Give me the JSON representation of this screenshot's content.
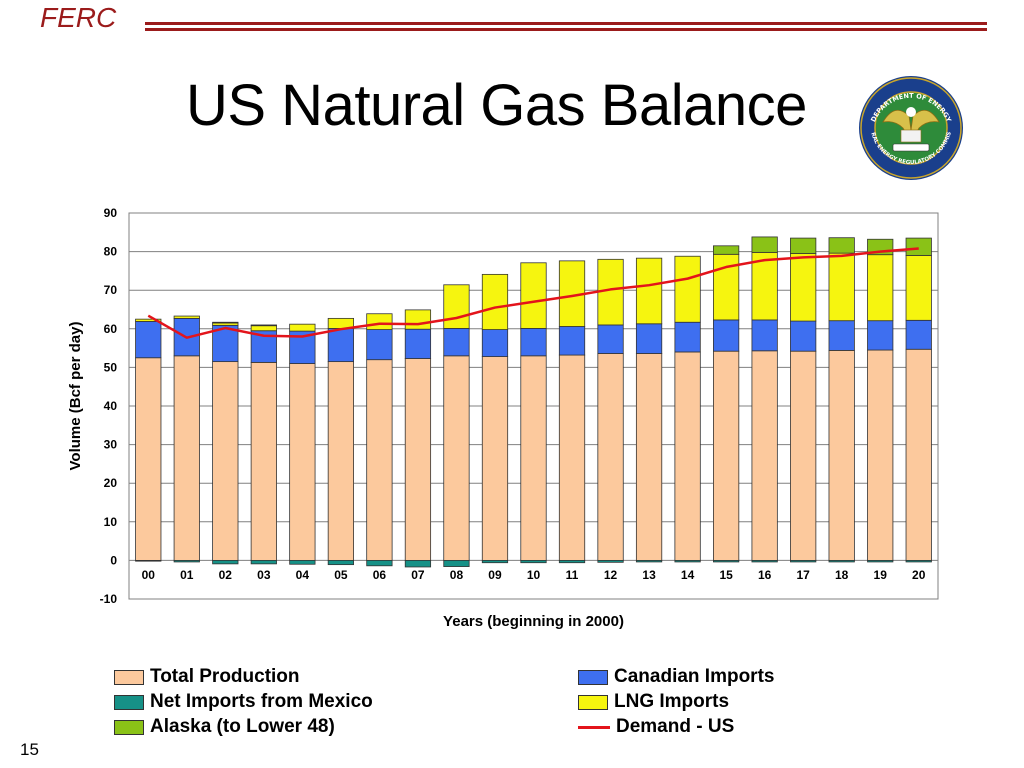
{
  "header": {
    "brand": "FERC",
    "title": "US Natural Gas Balance"
  },
  "seal": {
    "name": "seal-logo",
    "ring_text_top": "DEPARTMENT OF ENERGY",
    "ring_text_bottom": "FEDERAL ENERGY REGULATORY COMMISSION"
  },
  "colors": {
    "brand": "#9b1b1b",
    "production": "#fcc99d",
    "canada": "#3e6ff0",
    "mexico": "#169187",
    "lng": "#f6f50f",
    "alaska": "#8ac217",
    "demand": "#e3141b"
  },
  "chart_data": {
    "type": "bar",
    "stacked": true,
    "title": "",
    "xlabel": "Years (beginning in 2000)",
    "ylabel": "Volume (Bcf per day)",
    "ylim": [
      -10,
      90
    ],
    "yticks": [
      -10,
      0,
      10,
      20,
      30,
      40,
      50,
      60,
      70,
      80,
      90
    ],
    "grid": true,
    "legend_position": "bottom",
    "categories": [
      "00",
      "01",
      "02",
      "03",
      "04",
      "05",
      "06",
      "07",
      "08",
      "09",
      "10",
      "11",
      "12",
      "13",
      "14",
      "15",
      "16",
      "17",
      "18",
      "19",
      "20"
    ],
    "series": [
      {
        "name": "Total Production",
        "key": "production",
        "values": [
          52.5,
          53.0,
          51.5,
          51.3,
          51.0,
          51.5,
          52.0,
          52.3,
          53.0,
          52.8,
          53.0,
          53.2,
          53.6,
          53.6,
          54.0,
          54.2,
          54.3,
          54.2,
          54.4,
          54.5,
          54.7
        ]
      },
      {
        "name": "Canadian Imports",
        "key": "canada",
        "values": [
          9.4,
          9.7,
          9.4,
          8.2,
          8.4,
          8.6,
          7.8,
          7.6,
          7.1,
          7.0,
          7.1,
          7.4,
          7.4,
          7.7,
          7.7,
          8.1,
          8.0,
          7.8,
          7.7,
          7.6,
          7.5
        ]
      },
      {
        "name": "LNG Imports",
        "key": "lng",
        "values": [
          0.6,
          0.6,
          0.6,
          1.3,
          1.8,
          2.6,
          4.1,
          5.0,
          11.3,
          14.3,
          17.0,
          17.0,
          17.0,
          17.0,
          17.1,
          17.0,
          17.5,
          17.5,
          17.5,
          17.1,
          16.8
        ]
      },
      {
        "name": "Alaska (to Lower 48)",
        "key": "alaska",
        "values": [
          0,
          0,
          0.2,
          0.2,
          0,
          0,
          0,
          0,
          0,
          0,
          0,
          0,
          0,
          0,
          0,
          2.2,
          4.0,
          4.0,
          4.0,
          4.0,
          4.5
        ]
      },
      {
        "name": "Net Imports from Mexico",
        "key": "mexico",
        "values": [
          -0.2,
          -0.4,
          -0.9,
          -0.9,
          -1.0,
          -1.1,
          -1.4,
          -1.7,
          -1.6,
          -0.6,
          -0.6,
          -0.6,
          -0.5,
          -0.4,
          -0.4,
          -0.4,
          -0.4,
          -0.4,
          -0.4,
          -0.4,
          -0.4
        ]
      }
    ],
    "line": {
      "name": "Demand - US",
      "key": "demand",
      "values": [
        63.4,
        57.7,
        60.2,
        58.2,
        58.0,
        59.9,
        61.3,
        61.2,
        62.8,
        65.5,
        67.0,
        68.5,
        70.2,
        71.3,
        73.0,
        76.0,
        77.8,
        78.5,
        78.9,
        80.0,
        80.8
      ]
    }
  },
  "legend": {
    "items": [
      {
        "label": "Total Production",
        "key": "production",
        "kind": "box"
      },
      {
        "label": "Canadian Imports",
        "key": "canada",
        "kind": "box"
      },
      {
        "label": "Net Imports from Mexico",
        "key": "mexico",
        "kind": "box"
      },
      {
        "label": "LNG Imports",
        "key": "lng",
        "kind": "box"
      },
      {
        "label": "Alaska (to Lower 48)",
        "key": "alaska",
        "kind": "box"
      },
      {
        "label": "Demand - US",
        "key": "demand",
        "kind": "line"
      }
    ]
  },
  "footer": {
    "page_number": "15"
  }
}
